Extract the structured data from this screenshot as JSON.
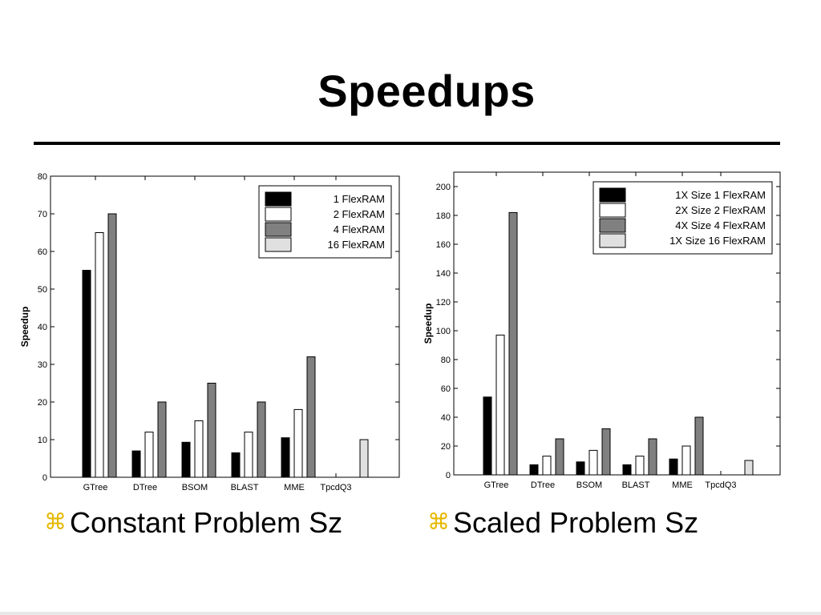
{
  "slide": {
    "title": "Speedups",
    "bullet_symbol": "⌘",
    "bullets": [
      "Constant Problem Sz",
      "Scaled Problem Sz"
    ]
  },
  "colors": {
    "series": [
      "#000000",
      "#ffffff",
      "#808080",
      "#e0e0e0"
    ],
    "bullet_symbol": "#e6b800"
  },
  "chart_data": [
    {
      "type": "bar",
      "ylabel": "Speedup",
      "xlabel": "",
      "ylim": [
        0,
        80
      ],
      "yticks": [
        0,
        10,
        20,
        30,
        40,
        50,
        60,
        70,
        80
      ],
      "legend_position": "top-right",
      "categories": [
        "GTree",
        "DTree",
        "BSOM",
        "BLAST",
        "MME",
        "TpcdQ3"
      ],
      "series": [
        {
          "name": "1  FlexRAM",
          "values": [
            55,
            7,
            9.3,
            6.5,
            10.5,
            null
          ]
        },
        {
          "name": "2  FlexRAM",
          "values": [
            65,
            12,
            15,
            12,
            18,
            null
          ]
        },
        {
          "name": "4  FlexRAM",
          "values": [
            70,
            20,
            25,
            20,
            32,
            null
          ]
        },
        {
          "name": "16 FlexRAM",
          "values": [
            null,
            null,
            null,
            null,
            null,
            10
          ]
        }
      ]
    },
    {
      "type": "bar",
      "ylabel": "Speedup",
      "xlabel": "",
      "ylim": [
        0,
        210
      ],
      "yticks": [
        0,
        20,
        40,
        60,
        80,
        100,
        120,
        140,
        160,
        180,
        200
      ],
      "legend_position": "top-right",
      "categories": [
        "GTree",
        "DTree",
        "BSOM",
        "BLAST",
        "MME",
        "TpcdQ3"
      ],
      "series": [
        {
          "name": "1X Size 1 FlexRAM",
          "values": [
            54,
            7,
            9,
            7,
            11,
            null
          ]
        },
        {
          "name": "2X Size 2 FlexRAM",
          "values": [
            97,
            13,
            17,
            13,
            20,
            null
          ]
        },
        {
          "name": "4X Size 4 FlexRAM",
          "values": [
            182,
            25,
            32,
            25,
            40,
            null
          ]
        },
        {
          "name": "1X Size 16 FlexRAM",
          "values": [
            null,
            null,
            null,
            null,
            null,
            10
          ]
        }
      ]
    }
  ]
}
